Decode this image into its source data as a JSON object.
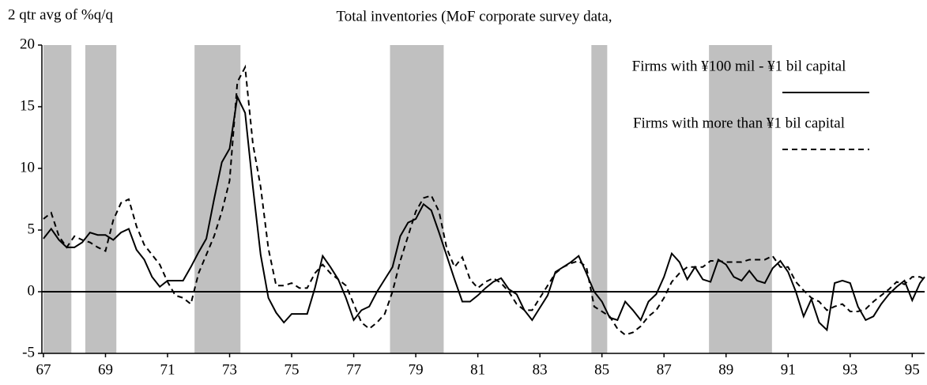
{
  "chart_data": {
    "type": "line",
    "title": "Total inventories (MoF corporate survey data,",
    "y_label": "2 qtr avg of %q/q",
    "xlim": [
      66.95,
      95.4
    ],
    "ylim": [
      -5,
      20
    ],
    "xticks": [
      67,
      69,
      71,
      73,
      75,
      77,
      79,
      81,
      83,
      85,
      87,
      89,
      91,
      93,
      95
    ],
    "yticks": [
      -5,
      0,
      5,
      10,
      15,
      20
    ],
    "zero_line": true,
    "shade_color": "#c0c0c0",
    "shaded_periods": [
      [
        67.0,
        67.9
      ],
      [
        68.35,
        69.35
      ],
      [
        71.87,
        73.35
      ],
      [
        78.17,
        79.9
      ],
      [
        84.66,
        85.17
      ],
      [
        88.45,
        90.48
      ]
    ],
    "x": [
      67.0,
      67.25,
      67.5,
      67.75,
      68.0,
      68.25,
      68.5,
      68.75,
      69.0,
      69.25,
      69.5,
      69.75,
      70.0,
      70.25,
      70.5,
      70.75,
      71.0,
      71.25,
      71.5,
      71.75,
      72.0,
      72.25,
      72.5,
      72.75,
      73.0,
      73.25,
      73.5,
      73.75,
      74.0,
      74.25,
      74.5,
      74.75,
      75.0,
      75.25,
      75.5,
      75.75,
      76.0,
      76.25,
      76.5,
      76.75,
      77.0,
      77.25,
      77.5,
      77.75,
      78.0,
      78.25,
      78.5,
      78.75,
      79.0,
      79.25,
      79.5,
      79.75,
      80.0,
      80.25,
      80.5,
      80.75,
      81.0,
      81.25,
      81.5,
      81.75,
      82.0,
      82.25,
      82.5,
      82.75,
      83.0,
      83.25,
      83.5,
      83.75,
      84.0,
      84.25,
      84.5,
      84.75,
      85.0,
      85.25,
      85.5,
      85.75,
      86.0,
      86.25,
      86.5,
      86.75,
      87.0,
      87.25,
      87.5,
      87.75,
      88.0,
      88.25,
      88.5,
      88.75,
      89.0,
      89.25,
      89.5,
      89.75,
      90.0,
      90.25,
      90.5,
      90.75,
      91.0,
      91.25,
      91.5,
      91.75,
      92.0,
      92.25,
      92.5,
      92.75,
      93.0,
      93.25,
      93.5,
      93.75,
      94.0,
      94.25,
      94.5,
      94.75,
      95.0,
      95.25,
      95.4
    ],
    "series": [
      {
        "name": "Firms with ¥100 mil - ¥1 bil capital",
        "color": "#000000",
        "line_style": "solid",
        "values": [
          4.3,
          5.1,
          4.2,
          3.6,
          3.6,
          4.0,
          4.8,
          4.6,
          4.6,
          4.2,
          4.8,
          5.1,
          3.4,
          2.6,
          1.2,
          0.4,
          0.9,
          0.9,
          0.9,
          2.0,
          3.2,
          4.3,
          7.5,
          10.5,
          11.6,
          15.8,
          14.5,
          8.5,
          3.0,
          -0.5,
          -1.7,
          -2.5,
          -1.8,
          -1.8,
          -1.8,
          0.3,
          2.9,
          2.0,
          1.0,
          -0.5,
          -2.3,
          -1.5,
          -1.2,
          0.0,
          1.0,
          2.0,
          4.5,
          5.6,
          5.9,
          7.1,
          6.6,
          4.8,
          2.9,
          1.0,
          -0.8,
          -0.8,
          -0.3,
          0.3,
          0.8,
          1.1,
          0.2,
          -0.2,
          -1.5,
          -2.3,
          -1.3,
          -0.3,
          1.6,
          2.0,
          2.4,
          2.9,
          1.5,
          0.0,
          -0.8,
          -2.1,
          -2.3,
          -0.8,
          -1.5,
          -2.3,
          -0.8,
          -0.2,
          1.2,
          3.1,
          2.4,
          1.0,
          2.0,
          1.0,
          0.8,
          2.6,
          2.2,
          1.2,
          0.9,
          1.7,
          0.9,
          0.7,
          1.9,
          2.5,
          1.6,
          0.0,
          -2.0,
          -0.6,
          -2.5,
          -3.1,
          0.7,
          0.9,
          0.7,
          -1.2,
          -2.3,
          -2.0,
          -1.0,
          -0.2,
          0.4,
          0.9,
          -0.7,
          0.7,
          1.2
        ]
      },
      {
        "name": "Firms with more than ¥1 bil capital",
        "color": "#000000",
        "line_style": "dashed",
        "values": [
          5.9,
          6.4,
          4.5,
          3.6,
          4.5,
          4.2,
          4.0,
          3.6,
          3.3,
          5.8,
          7.2,
          7.5,
          5.3,
          3.8,
          3.0,
          2.2,
          0.8,
          -0.3,
          -0.5,
          -1.0,
          1.5,
          3.0,
          4.5,
          6.5,
          9.0,
          17.0,
          18.2,
          12.0,
          8.5,
          3.5,
          0.5,
          0.5,
          0.7,
          0.3,
          0.3,
          1.5,
          2.2,
          1.5,
          1.0,
          0.5,
          -1.0,
          -2.5,
          -3.0,
          -2.5,
          -1.8,
          0.0,
          2.5,
          4.5,
          6.5,
          7.6,
          7.8,
          6.5,
          3.5,
          2.0,
          2.8,
          1.0,
          0.3,
          0.8,
          1.1,
          0.7,
          0.0,
          -1.0,
          -1.5,
          -1.5,
          -0.5,
          0.5,
          1.5,
          2.0,
          2.3,
          2.5,
          2.0,
          -1.2,
          -1.6,
          -2.0,
          -3.0,
          -3.5,
          -3.3,
          -2.8,
          -2.0,
          -1.5,
          -0.5,
          0.8,
          1.5,
          2.0,
          2.0,
          2.0,
          2.5,
          2.5,
          2.4,
          2.4,
          2.4,
          2.6,
          2.6,
          2.6,
          2.9,
          2.0,
          2.0,
          0.8,
          0.1,
          -0.5,
          -0.8,
          -1.5,
          -1.2,
          -1.0,
          -1.6,
          -1.6,
          -1.4,
          -0.8,
          -0.3,
          0.2,
          0.8,
          0.6,
          1.2,
          1.2,
          1.0
        ]
      }
    ]
  }
}
